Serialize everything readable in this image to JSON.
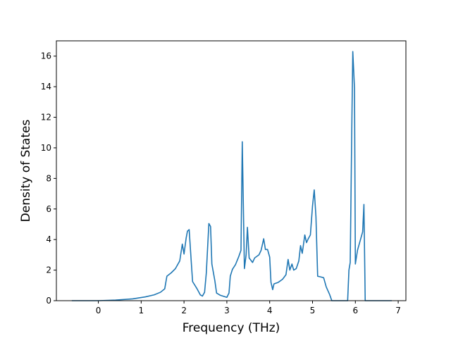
{
  "chart_data": {
    "type": "line",
    "title": "",
    "xlabel": "Frequency (THz)",
    "ylabel": "Density of States",
    "xlim": [
      -0.98,
      7.18
    ],
    "ylim": [
      0,
      17
    ],
    "xticks": [
      0,
      1,
      2,
      3,
      4,
      5,
      6,
      7
    ],
    "yticks": [
      0,
      2,
      4,
      6,
      8,
      10,
      12,
      14,
      16
    ],
    "grid": false,
    "legend": "none",
    "series": [
      {
        "color": "#1f77b4",
        "points": [
          [
            -0.62,
            0.0
          ],
          [
            0.0,
            0.0
          ],
          [
            0.4,
            0.04
          ],
          [
            0.8,
            0.12
          ],
          [
            1.1,
            0.25
          ],
          [
            1.3,
            0.38
          ],
          [
            1.45,
            0.55
          ],
          [
            1.55,
            0.78
          ],
          [
            1.6,
            1.6
          ],
          [
            1.7,
            1.82
          ],
          [
            1.8,
            2.1
          ],
          [
            1.9,
            2.6
          ],
          [
            1.96,
            3.7
          ],
          [
            2.0,
            3.05
          ],
          [
            2.05,
            4.1
          ],
          [
            2.08,
            4.55
          ],
          [
            2.12,
            4.65
          ],
          [
            2.17,
            2.5
          ],
          [
            2.2,
            1.25
          ],
          [
            2.3,
            0.8
          ],
          [
            2.38,
            0.38
          ],
          [
            2.43,
            0.3
          ],
          [
            2.48,
            0.55
          ],
          [
            2.52,
            1.8
          ],
          [
            2.58,
            5.05
          ],
          [
            2.62,
            4.85
          ],
          [
            2.65,
            2.4
          ],
          [
            2.72,
            1.3
          ],
          [
            2.76,
            0.5
          ],
          [
            2.85,
            0.35
          ],
          [
            3.0,
            0.22
          ],
          [
            3.05,
            0.5
          ],
          [
            3.08,
            1.6
          ],
          [
            3.13,
            2.05
          ],
          [
            3.2,
            2.35
          ],
          [
            3.28,
            2.9
          ],
          [
            3.33,
            3.3
          ],
          [
            3.36,
            10.4
          ],
          [
            3.41,
            2.1
          ],
          [
            3.45,
            3.0
          ],
          [
            3.48,
            4.8
          ],
          [
            3.52,
            2.8
          ],
          [
            3.6,
            2.5
          ],
          [
            3.65,
            2.8
          ],
          [
            3.75,
            3.0
          ],
          [
            3.8,
            3.3
          ],
          [
            3.86,
            4.05
          ],
          [
            3.9,
            3.35
          ],
          [
            3.95,
            3.35
          ],
          [
            4.0,
            2.85
          ],
          [
            4.03,
            1.2
          ],
          [
            4.07,
            0.72
          ],
          [
            4.1,
            1.1
          ],
          [
            4.2,
            1.2
          ],
          [
            4.3,
            1.4
          ],
          [
            4.38,
            1.7
          ],
          [
            4.43,
            2.7
          ],
          [
            4.47,
            2.0
          ],
          [
            4.52,
            2.4
          ],
          [
            4.56,
            2.0
          ],
          [
            4.62,
            2.1
          ],
          [
            4.68,
            2.6
          ],
          [
            4.72,
            3.6
          ],
          [
            4.76,
            3.1
          ],
          [
            4.82,
            4.3
          ],
          [
            4.86,
            3.8
          ],
          [
            4.9,
            4.05
          ],
          [
            4.95,
            4.3
          ],
          [
            5.0,
            6.2
          ],
          [
            5.04,
            7.25
          ],
          [
            5.08,
            5.5
          ],
          [
            5.12,
            1.6
          ],
          [
            5.2,
            1.55
          ],
          [
            5.26,
            1.5
          ],
          [
            5.32,
            0.9
          ],
          [
            5.4,
            0.4
          ],
          [
            5.45,
            0.0
          ],
          [
            5.82,
            0.0
          ],
          [
            5.85,
            2.0
          ],
          [
            5.88,
            2.5
          ],
          [
            5.92,
            12.0
          ],
          [
            5.94,
            16.3
          ],
          [
            5.98,
            13.9
          ],
          [
            6.0,
            2.4
          ],
          [
            6.05,
            3.3
          ],
          [
            6.12,
            4.0
          ],
          [
            6.17,
            4.5
          ],
          [
            6.2,
            6.3
          ],
          [
            6.23,
            0.0
          ],
          [
            6.85,
            0.0
          ]
        ]
      }
    ]
  }
}
